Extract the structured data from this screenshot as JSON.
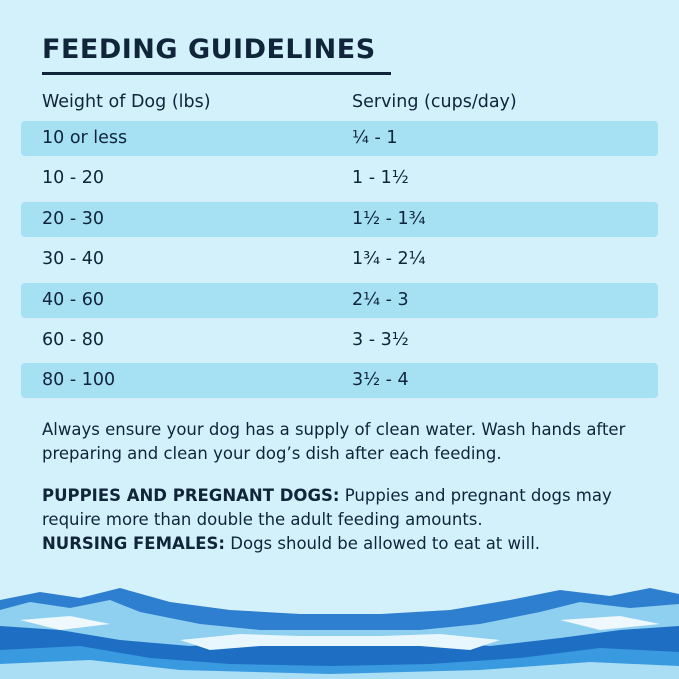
{
  "header": {
    "title": "FEEDING GUIDELINES"
  },
  "table": {
    "columns": [
      "Weight of Dog (lbs)",
      "Serving (cups/day)"
    ],
    "rows": [
      [
        "10 or less",
        "¼ - 1"
      ],
      [
        "10 - 20",
        "1 - 1½"
      ],
      [
        "20 - 30",
        "1½ - 1¾"
      ],
      [
        "30 - 40",
        "1¾ - 2¼"
      ],
      [
        "40 - 60",
        "2¼ - 3"
      ],
      [
        "60 - 80",
        "3 - 3½"
      ],
      [
        "80 - 100",
        "3½ - 4"
      ]
    ]
  },
  "paragraph": "Always ensure your dog has a supply of clean water. Wash hands after preparing and clean your dog’s dish after each feeding.",
  "notes": [
    {
      "label": "PUPPIES AND PREGNANT DOGS:",
      "text": "Puppies and pregnant dogs may require more than double the adult feeding amounts."
    },
    {
      "label": "NURSING FEMALES:",
      "text": "Dogs should be allowed to eat at will."
    }
  ]
}
